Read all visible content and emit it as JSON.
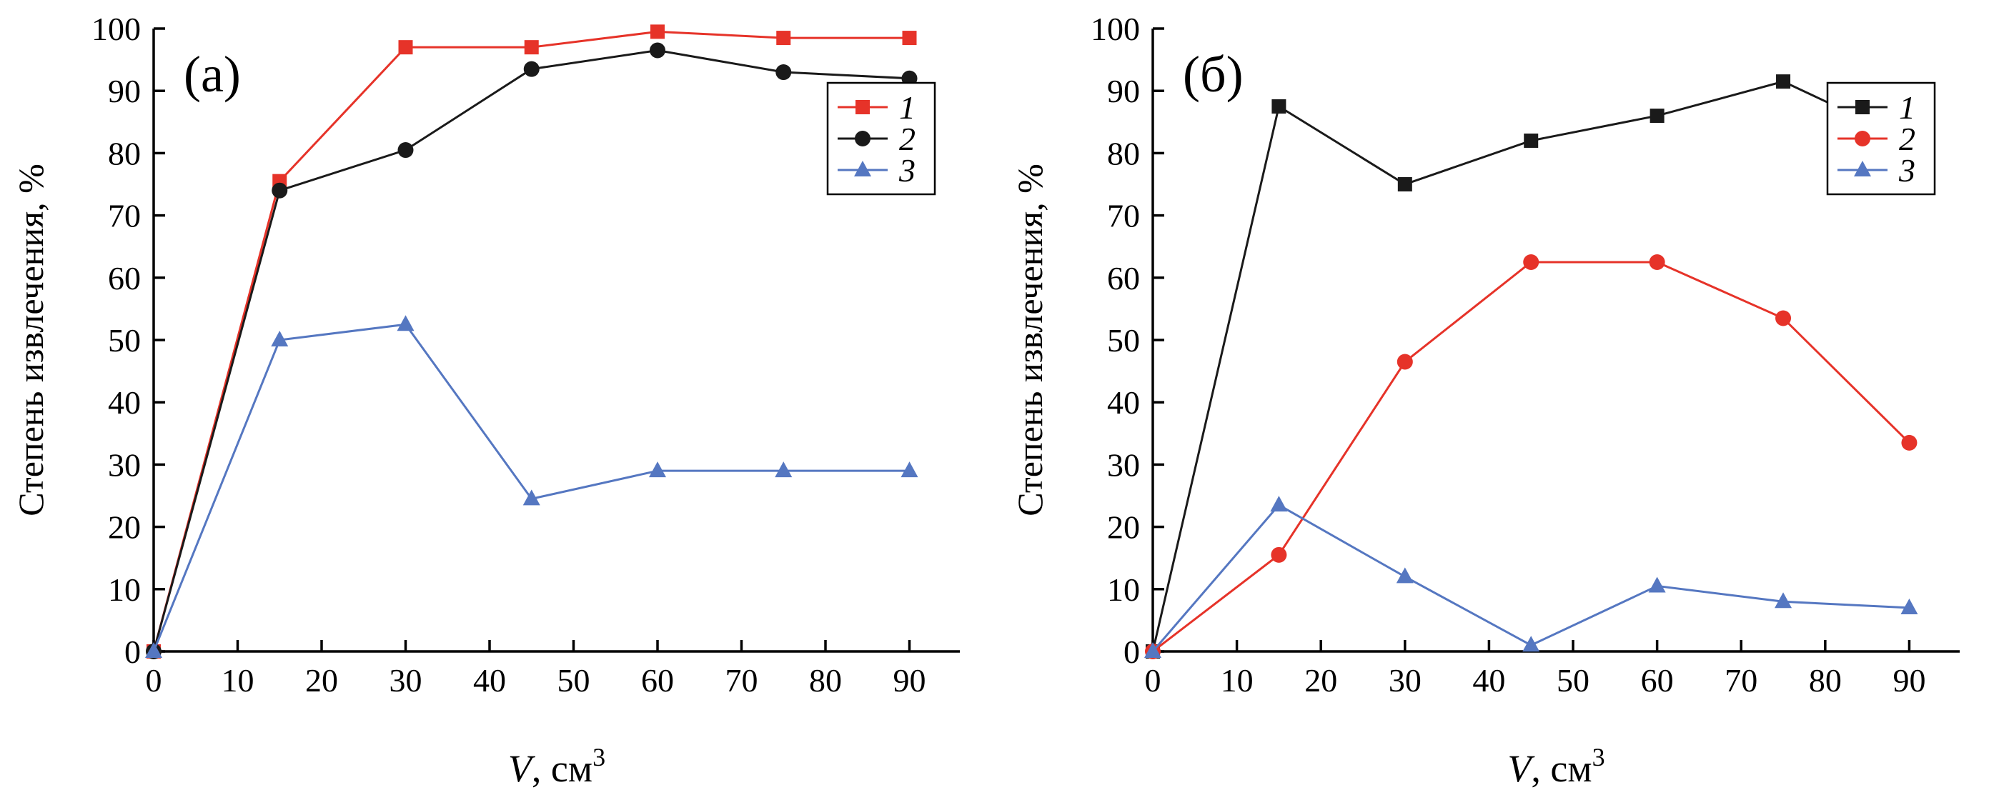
{
  "figure": {
    "background": "#ffffff",
    "description": "Two-panel extraction degree line chart"
  },
  "chart_data": [
    {
      "type": "line",
      "panel_label": "(а)",
      "title": "",
      "ylabel": "Степень извлечения, %",
      "xlabel": "V, см³",
      "xlabel_var": "V",
      "xlabel_rest": ", см",
      "xlabel_sup": "3",
      "x": [
        0,
        15,
        30,
        45,
        60,
        75,
        90
      ],
      "xticks": [
        0,
        10,
        20,
        30,
        40,
        50,
        60,
        70,
        80,
        90
      ],
      "yticks": [
        0,
        10,
        20,
        30,
        40,
        50,
        60,
        70,
        80,
        90,
        100
      ],
      "xlim": [
        0,
        96
      ],
      "ylim": [
        0,
        100
      ],
      "grid": false,
      "legend_position": "upper-right",
      "series": [
        {
          "name": "1",
          "marker": "square",
          "color": "#e63329",
          "values": [
            0,
            75.5,
            97,
            97,
            99.5,
            98.5,
            98.5
          ]
        },
        {
          "name": "2",
          "marker": "circle",
          "color": "#1a1a1a",
          "values": [
            0,
            74,
            80.5,
            93.5,
            96.5,
            93,
            92
          ]
        },
        {
          "name": "3",
          "marker": "triangle",
          "color": "#5577c1",
          "values": [
            0,
            50,
            52.5,
            24.5,
            29,
            29,
            29
          ]
        }
      ]
    },
    {
      "type": "line",
      "panel_label": "(б)",
      "title": "",
      "ylabel": "Степень извлечения, %",
      "xlabel": "V, см³",
      "xlabel_var": "V",
      "xlabel_rest": ", см",
      "xlabel_sup": "3",
      "x": [
        0,
        15,
        30,
        45,
        60,
        75,
        90
      ],
      "xticks": [
        0,
        10,
        20,
        30,
        40,
        50,
        60,
        70,
        80,
        90
      ],
      "yticks": [
        0,
        10,
        20,
        30,
        40,
        50,
        60,
        70,
        80,
        90,
        100
      ],
      "xlim": [
        0,
        96
      ],
      "ylim": [
        0,
        100
      ],
      "grid": false,
      "legend_position": "upper-right",
      "series": [
        {
          "name": "1",
          "marker": "square",
          "color": "#1a1a1a",
          "values": [
            0,
            87.5,
            75,
            82,
            86,
            91.5,
            82
          ]
        },
        {
          "name": "2",
          "marker": "circle",
          "color": "#e63329",
          "values": [
            0,
            15.5,
            46.5,
            62.5,
            62.5,
            53.5,
            33.5
          ]
        },
        {
          "name": "3",
          "marker": "triangle",
          "color": "#5577c1",
          "values": [
            0,
            23.5,
            12,
            1,
            10.5,
            8,
            7
          ]
        }
      ]
    }
  ]
}
